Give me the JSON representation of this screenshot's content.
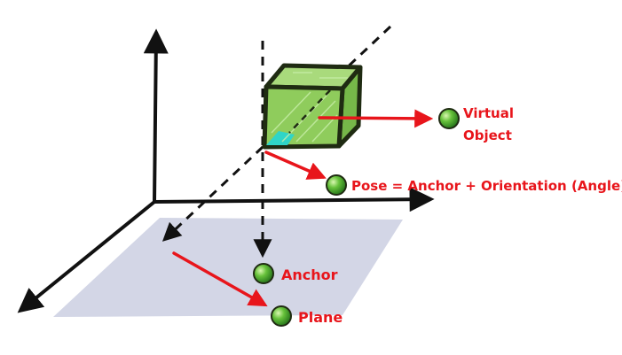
{
  "colors": {
    "accent_red": "#e8151b",
    "axis_black": "#111111",
    "plane_fill": "#d3d6e6",
    "cube_fill": "#8fcc5c",
    "cube_highlight": "#2fd5c7",
    "marker_green": "#3b9a2c"
  },
  "labels": {
    "virtual_object_line1": "Virtual",
    "virtual_object_line2": "Object",
    "pose": "Pose = Anchor + Orientation (Angle)",
    "anchor": "Anchor",
    "plane": "Plane"
  }
}
